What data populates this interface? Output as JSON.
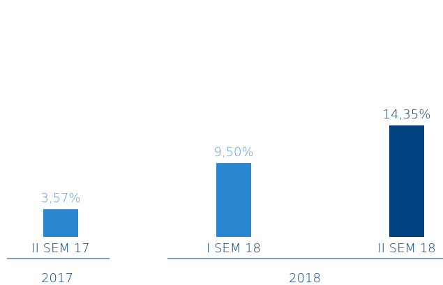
{
  "chart_data": {
    "type": "bar",
    "categories": [
      "II SEM 17",
      "I SEM 18",
      "II SEM 18"
    ],
    "values": [
      3.57,
      9.5,
      14.35
    ],
    "value_labels": [
      "3,57%",
      "9,50%",
      "14,35%"
    ],
    "colors": [
      "#2a86cf",
      "#2a86cf",
      "#00427f"
    ],
    "label_colors": [
      "#5aa2da",
      "#5aa2da",
      "#00427f"
    ],
    "category_color": "#00427f",
    "groups": [
      "2017",
      "2018"
    ]
  }
}
